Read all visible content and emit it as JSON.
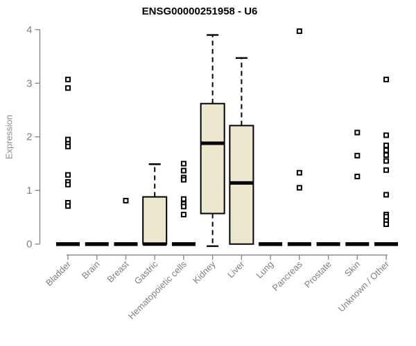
{
  "page": {
    "title": "ENSG00000251958 - U6"
  },
  "chart_data": {
    "type": "boxplot",
    "title": "ENSG00000251958 - U6",
    "ylabel": "Expression",
    "xlabel": "",
    "ylim": [
      0,
      4
    ],
    "yticks": [
      0,
      1,
      2,
      3,
      4
    ],
    "grid": false,
    "legend": false,
    "colors": {
      "box_fill": "#ECE7CD",
      "line": "#000000",
      "axis": "#888888",
      "tick_text": "#7F7F7F",
      "title": "#000000",
      "background": "#FFFFFF"
    },
    "categories": [
      "Bladder",
      "Brain",
      "Breast",
      "Gastric",
      "Hematopoietic cells",
      "Kidney",
      "Liver",
      "Lung",
      "Pancreas",
      "Prostate",
      "Skin",
      "Unknown / Other"
    ],
    "series": [
      {
        "category": "Bladder",
        "q1": 0,
        "median": 0,
        "q3": 0,
        "whisker_low": null,
        "whisker_high": null,
        "outliers": [
          3.07,
          2.91,
          1.95,
          1.87,
          1.82,
          1.29,
          1.16,
          1.11,
          0.77,
          0.71
        ]
      },
      {
        "category": "Brain",
        "q1": 0,
        "median": 0,
        "q3": 0,
        "whisker_low": null,
        "whisker_high": null,
        "outliers": []
      },
      {
        "category": "Breast",
        "q1": 0,
        "median": 0,
        "q3": 0,
        "whisker_low": null,
        "whisker_high": null,
        "outliers": [
          0.81
        ]
      },
      {
        "category": "Gastric",
        "q1": 0,
        "median": 0,
        "q3": 0.88,
        "whisker_low": null,
        "whisker_high": 1.49,
        "outliers": []
      },
      {
        "category": "Hematopoietic cells",
        "q1": 0,
        "median": 0,
        "q3": 0,
        "whisker_low": null,
        "whisker_high": null,
        "outliers": [
          1.5,
          1.37,
          1.24,
          1.2,
          0.84,
          0.75,
          0.7,
          0.55
        ]
      },
      {
        "category": "Kidney",
        "q1": 0.57,
        "median": 1.88,
        "q3": 2.62,
        "whisker_low": 0,
        "whisker_high": 3.9,
        "outliers": []
      },
      {
        "category": "Liver",
        "q1": 0,
        "median": 1.14,
        "q3": 2.21,
        "whisker_low": null,
        "whisker_high": 3.47,
        "outliers": []
      },
      {
        "category": "Lung",
        "q1": 0,
        "median": 0,
        "q3": 0,
        "whisker_low": null,
        "whisker_high": null,
        "outliers": []
      },
      {
        "category": "Pancreas",
        "q1": 0,
        "median": 0,
        "q3": 0,
        "whisker_low": null,
        "whisker_high": null,
        "outliers": [
          3.97,
          1.33,
          1.05
        ]
      },
      {
        "category": "Prostate",
        "q1": 0,
        "median": 0,
        "q3": 0,
        "whisker_low": null,
        "whisker_high": null,
        "outliers": []
      },
      {
        "category": "Skin",
        "q1": 0,
        "median": 0,
        "q3": 0,
        "whisker_low": null,
        "whisker_high": null,
        "outliers": [
          2.08,
          1.65,
          1.26
        ]
      },
      {
        "category": "Unknown / Other",
        "q1": 0,
        "median": 0,
        "q3": 0,
        "whisker_low": null,
        "whisker_high": null,
        "outliers": [
          3.07,
          2.03,
          1.84,
          1.75,
          1.66,
          1.55,
          1.38,
          0.92,
          0.55,
          0.51,
          0.43,
          0.37
        ]
      }
    ]
  }
}
